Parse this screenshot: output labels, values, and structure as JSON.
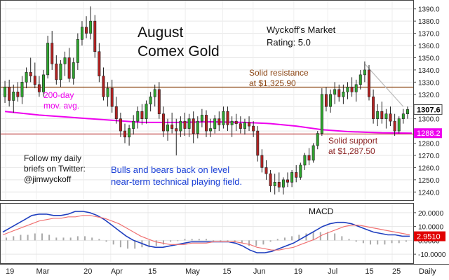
{
  "chart_data": [
    {
      "type": "candlestick",
      "title": "August Comex Gold",
      "rating_title": "Wyckoff's Market",
      "rating": "Rating: 5.0",
      "ylim": [
        1235,
        1395
      ],
      "y_ticks": [
        1240,
        1250,
        1260,
        1270,
        1280,
        1290,
        1300,
        1310,
        1320,
        1330,
        1340,
        1350,
        1360,
        1370,
        1380,
        1390
      ],
      "y_tick_labels": [
        "1240.0",
        "1250.0",
        "1260.0",
        "1270.0",
        "1280.0",
        "1290.0",
        "1300.0",
        "1310.0",
        "1320.0",
        "1330.0",
        "1340.0",
        "1350.0",
        "1360.0",
        "1370.0",
        "1380.0",
        "1390.0"
      ],
      "last_price": 1307.6,
      "last_price_label": "1307.6",
      "ma_value": 1288.2,
      "ma_value_label": "1288.2",
      "resistance": 1325.9,
      "resistance_label_1": "Solid resistance",
      "resistance_label_2": "at $1,325.90",
      "support": 1287.5,
      "support_label_1": "Solid support",
      "support_label_2": "at $1,287.50",
      "ma_label_1": "200-day",
      "ma_label_2": "mov. avg.",
      "note_lines": [
        "Follow my daily",
        "briefs on Twitter:",
        "@jimwyckoff"
      ],
      "commentary_lines": [
        "Bulls and bears back on level",
        "near-term technical playing field."
      ],
      "colors": {
        "up": "#2ea52e",
        "down": "#b22222",
        "resistance": "#8b4513",
        "support": "#b22222",
        "ma": "#ee00ee",
        "trendline": "#bbbbbb",
        "commentary": "#1a3fd6"
      },
      "candles": [
        {
          "o": 1318,
          "h": 1331,
          "l": 1313,
          "c": 1326
        },
        {
          "o": 1326,
          "h": 1332,
          "l": 1310,
          "c": 1315
        },
        {
          "o": 1315,
          "h": 1328,
          "l": 1305,
          "c": 1322
        },
        {
          "o": 1322,
          "h": 1330,
          "l": 1314,
          "c": 1318
        },
        {
          "o": 1318,
          "h": 1335,
          "l": 1312,
          "c": 1330
        },
        {
          "o": 1330,
          "h": 1342,
          "l": 1325,
          "c": 1338
        },
        {
          "o": 1338,
          "h": 1350,
          "l": 1330,
          "c": 1335
        },
        {
          "o": 1335,
          "h": 1346,
          "l": 1325,
          "c": 1328
        },
        {
          "o": 1328,
          "h": 1335,
          "l": 1318,
          "c": 1322
        },
        {
          "o": 1322,
          "h": 1340,
          "l": 1318,
          "c": 1336
        },
        {
          "o": 1336,
          "h": 1368,
          "l": 1333,
          "c": 1362
        },
        {
          "o": 1362,
          "h": 1372,
          "l": 1340,
          "c": 1345
        },
        {
          "o": 1345,
          "h": 1352,
          "l": 1328,
          "c": 1332
        },
        {
          "o": 1332,
          "h": 1348,
          "l": 1326,
          "c": 1345
        },
        {
          "o": 1345,
          "h": 1355,
          "l": 1335,
          "c": 1350
        },
        {
          "o": 1350,
          "h": 1358,
          "l": 1330,
          "c": 1333
        },
        {
          "o": 1333,
          "h": 1350,
          "l": 1328,
          "c": 1346
        },
        {
          "o": 1346,
          "h": 1370,
          "l": 1340,
          "c": 1365
        },
        {
          "o": 1365,
          "h": 1380,
          "l": 1360,
          "c": 1375
        },
        {
          "o": 1375,
          "h": 1384,
          "l": 1366,
          "c": 1370
        },
        {
          "o": 1370,
          "h": 1392,
          "l": 1365,
          "c": 1380
        },
        {
          "o": 1380,
          "h": 1385,
          "l": 1350,
          "c": 1355
        },
        {
          "o": 1355,
          "h": 1362,
          "l": 1330,
          "c": 1335
        },
        {
          "o": 1335,
          "h": 1342,
          "l": 1315,
          "c": 1318
        },
        {
          "o": 1318,
          "h": 1330,
          "l": 1310,
          "c": 1325
        },
        {
          "o": 1325,
          "h": 1332,
          "l": 1305,
          "c": 1310
        },
        {
          "o": 1310,
          "h": 1318,
          "l": 1296,
          "c": 1300
        },
        {
          "o": 1300,
          "h": 1305,
          "l": 1285,
          "c": 1290
        },
        {
          "o": 1290,
          "h": 1296,
          "l": 1280,
          "c": 1285
        },
        {
          "o": 1285,
          "h": 1295,
          "l": 1278,
          "c": 1292
        },
        {
          "o": 1292,
          "h": 1303,
          "l": 1287,
          "c": 1298
        },
        {
          "o": 1298,
          "h": 1310,
          "l": 1292,
          "c": 1306
        },
        {
          "o": 1306,
          "h": 1312,
          "l": 1295,
          "c": 1300
        },
        {
          "o": 1300,
          "h": 1315,
          "l": 1296,
          "c": 1312
        },
        {
          "o": 1312,
          "h": 1322,
          "l": 1306,
          "c": 1318
        },
        {
          "o": 1318,
          "h": 1328,
          "l": 1310,
          "c": 1324
        },
        {
          "o": 1324,
          "h": 1330,
          "l": 1300,
          "c": 1304
        },
        {
          "o": 1304,
          "h": 1310,
          "l": 1285,
          "c": 1290
        },
        {
          "o": 1290,
          "h": 1300,
          "l": 1282,
          "c": 1295
        },
        {
          "o": 1295,
          "h": 1305,
          "l": 1288,
          "c": 1292
        },
        {
          "o": 1292,
          "h": 1300,
          "l": 1270,
          "c": 1290
        },
        {
          "o": 1290,
          "h": 1302,
          "l": 1285,
          "c": 1298
        },
        {
          "o": 1298,
          "h": 1305,
          "l": 1286,
          "c": 1292
        },
        {
          "o": 1292,
          "h": 1304,
          "l": 1285,
          "c": 1300
        },
        {
          "o": 1300,
          "h": 1306,
          "l": 1280,
          "c": 1288
        },
        {
          "o": 1288,
          "h": 1302,
          "l": 1284,
          "c": 1298
        },
        {
          "o": 1298,
          "h": 1308,
          "l": 1293,
          "c": 1303
        },
        {
          "o": 1303,
          "h": 1307,
          "l": 1285,
          "c": 1290
        },
        {
          "o": 1290,
          "h": 1300,
          "l": 1285,
          "c": 1292
        },
        {
          "o": 1292,
          "h": 1303,
          "l": 1288,
          "c": 1300
        },
        {
          "o": 1300,
          "h": 1306,
          "l": 1290,
          "c": 1295
        },
        {
          "o": 1295,
          "h": 1310,
          "l": 1292,
          "c": 1306
        },
        {
          "o": 1306,
          "h": 1310,
          "l": 1290,
          "c": 1295
        },
        {
          "o": 1295,
          "h": 1302,
          "l": 1285,
          "c": 1298
        },
        {
          "o": 1298,
          "h": 1304,
          "l": 1290,
          "c": 1296
        },
        {
          "o": 1296,
          "h": 1302,
          "l": 1288,
          "c": 1292
        },
        {
          "o": 1292,
          "h": 1300,
          "l": 1287,
          "c": 1297
        },
        {
          "o": 1297,
          "h": 1302,
          "l": 1290,
          "c": 1294
        },
        {
          "o": 1294,
          "h": 1298,
          "l": 1285,
          "c": 1290
        },
        {
          "o": 1290,
          "h": 1294,
          "l": 1265,
          "c": 1270
        },
        {
          "o": 1270,
          "h": 1275,
          "l": 1256,
          "c": 1260
        },
        {
          "o": 1260,
          "h": 1266,
          "l": 1250,
          "c": 1255
        },
        {
          "o": 1255,
          "h": 1258,
          "l": 1240,
          "c": 1245
        },
        {
          "o": 1245,
          "h": 1255,
          "l": 1238,
          "c": 1248
        },
        {
          "o": 1248,
          "h": 1256,
          "l": 1240,
          "c": 1244
        },
        {
          "o": 1244,
          "h": 1252,
          "l": 1238,
          "c": 1250
        },
        {
          "o": 1250,
          "h": 1256,
          "l": 1244,
          "c": 1248
        },
        {
          "o": 1248,
          "h": 1258,
          "l": 1244,
          "c": 1256
        },
        {
          "o": 1256,
          "h": 1262,
          "l": 1248,
          "c": 1252
        },
        {
          "o": 1252,
          "h": 1264,
          "l": 1250,
          "c": 1262
        },
        {
          "o": 1262,
          "h": 1272,
          "l": 1258,
          "c": 1270
        },
        {
          "o": 1270,
          "h": 1276,
          "l": 1262,
          "c": 1266
        },
        {
          "o": 1266,
          "h": 1280,
          "l": 1264,
          "c": 1278
        },
        {
          "o": 1278,
          "h": 1290,
          "l": 1275,
          "c": 1288
        },
        {
          "o": 1288,
          "h": 1325,
          "l": 1286,
          "c": 1320
        },
        {
          "o": 1320,
          "h": 1326,
          "l": 1306,
          "c": 1310
        },
        {
          "o": 1310,
          "h": 1324,
          "l": 1305,
          "c": 1320
        },
        {
          "o": 1320,
          "h": 1330,
          "l": 1312,
          "c": 1324
        },
        {
          "o": 1324,
          "h": 1328,
          "l": 1314,
          "c": 1318
        },
        {
          "o": 1318,
          "h": 1328,
          "l": 1312,
          "c": 1322
        },
        {
          "o": 1322,
          "h": 1330,
          "l": 1316,
          "c": 1326
        },
        {
          "o": 1326,
          "h": 1334,
          "l": 1318,
          "c": 1322
        },
        {
          "o": 1322,
          "h": 1332,
          "l": 1314,
          "c": 1328
        },
        {
          "o": 1328,
          "h": 1340,
          "l": 1324,
          "c": 1336
        },
        {
          "o": 1336,
          "h": 1347,
          "l": 1330,
          "c": 1340
        },
        {
          "o": 1340,
          "h": 1344,
          "l": 1315,
          "c": 1318
        },
        {
          "o": 1318,
          "h": 1324,
          "l": 1296,
          "c": 1300
        },
        {
          "o": 1300,
          "h": 1312,
          "l": 1294,
          "c": 1306
        },
        {
          "o": 1306,
          "h": 1314,
          "l": 1296,
          "c": 1300
        },
        {
          "o": 1300,
          "h": 1308,
          "l": 1292,
          "c": 1304
        },
        {
          "o": 1304,
          "h": 1310,
          "l": 1294,
          "c": 1298
        },
        {
          "o": 1298,
          "h": 1304,
          "l": 1286,
          "c": 1290
        },
        {
          "o": 1290,
          "h": 1302,
          "l": 1288,
          "c": 1300
        },
        {
          "o": 1300,
          "h": 1308,
          "l": 1296,
          "c": 1304
        },
        {
          "o": 1304,
          "h": 1310,
          "l": 1300,
          "c": 1307.6
        }
      ],
      "ma_points": [
        [
          0,
          1306
        ],
        [
          8,
          1303
        ],
        [
          16,
          1301
        ],
        [
          24,
          1299
        ],
        [
          32,
          1297
        ],
        [
          40,
          1297
        ],
        [
          48,
          1297.5
        ],
        [
          56,
          1297
        ],
        [
          62,
          1296
        ],
        [
          68,
          1294
        ],
        [
          74,
          1291
        ],
        [
          80,
          1289.5
        ],
        [
          88,
          1288.5
        ],
        [
          95,
          1288.2
        ]
      ],
      "resistance_trendline": [
        [
          84,
          1345
        ],
        [
          93,
          1310
        ]
      ]
    },
    {
      "type": "line",
      "title": "MACD",
      "ylim": [
        -15,
        25
      ],
      "y_ticks": [
        -10,
        0,
        10,
        20
      ],
      "y_tick_labels": [
        "-10.0000",
        "0.0000",
        "10.0000",
        "20.0000"
      ],
      "last_value": 2.951,
      "last_value_label": "2.9510",
      "series": [
        {
          "values": [
            6,
            9,
            12,
            15,
            18,
            19,
            19,
            18,
            18,
            19,
            21,
            21,
            20,
            18,
            15,
            11,
            7,
            3,
            0,
            -2,
            -4,
            -5,
            -5,
            -4,
            -3,
            -2,
            -1,
            -1,
            -1,
            -1,
            -1,
            -1,
            -2,
            -4,
            -7,
            -9,
            -9,
            -8,
            -6,
            -4,
            -2,
            1,
            4,
            7,
            10,
            12,
            13,
            13,
            12,
            10,
            8,
            6,
            5,
            4,
            4,
            3,
            3
          ]
        },
        {
          "values": [
            4,
            6,
            8,
            10,
            12,
            14,
            15,
            16,
            16,
            17,
            17,
            18,
            18,
            17,
            16,
            14,
            12,
            9,
            6,
            3,
            1,
            -1,
            -2,
            -3,
            -3,
            -3,
            -2,
            -2,
            -2,
            -1,
            -1,
            -1,
            -1,
            -2,
            -3,
            -5,
            -6,
            -7,
            -7,
            -6,
            -5,
            -3,
            -1,
            1,
            4,
            6,
            8,
            10,
            11,
            11,
            10,
            9,
            8,
            7,
            6,
            5,
            4
          ]
        }
      ],
      "histogram": [
        2,
        3,
        4,
        4,
        5,
        5,
        4,
        2,
        2,
        2,
        3,
        3,
        2,
        1,
        -1,
        -3,
        -5,
        -6,
        -6,
        -5,
        -5,
        -4,
        -3,
        -1,
        0,
        1,
        1,
        1,
        1,
        0,
        0,
        0,
        -1,
        -2,
        -4,
        -4,
        -3,
        -1,
        1,
        2,
        3,
        4,
        5,
        6,
        6,
        6,
        5,
        3,
        1,
        -1,
        -2,
        -3,
        -3,
        -3,
        -2,
        -2,
        -1
      ]
    }
  ],
  "x_axis": {
    "labels": [
      "19",
      "Mar",
      "20",
      "Apr",
      "15",
      "May",
      "15",
      "Jun",
      "19",
      "Jul",
      "15",
      "25"
    ],
    "label_positions": [
      0,
      9,
      23,
      31,
      42,
      53,
      64,
      73,
      85,
      95,
      106,
      114
    ],
    "period": "Daily"
  }
}
